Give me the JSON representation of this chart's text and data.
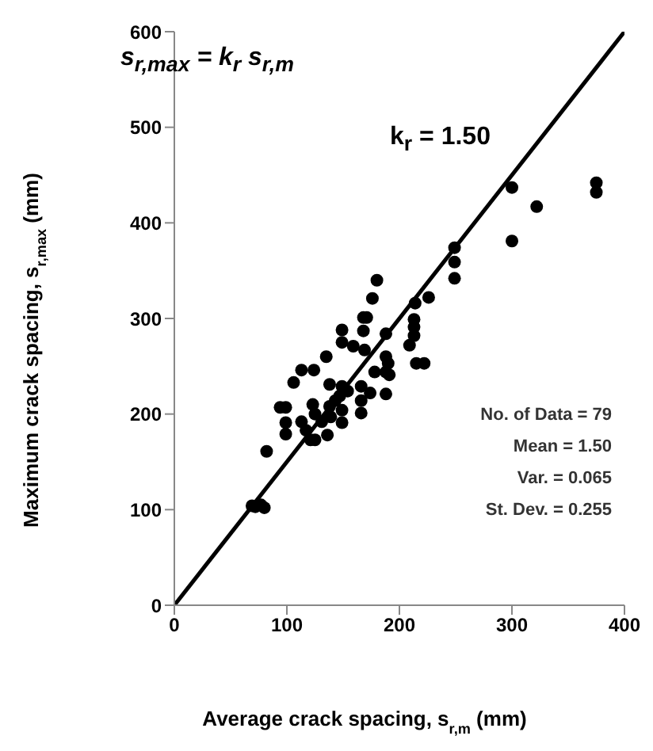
{
  "chart_data": {
    "type": "scatter",
    "xlabel": "Average crack spacing, s$_{r,m}$ (mm)",
    "ylabel": "Maximum crack spacing, s$_{r,max}$ (mm)",
    "annotations": [
      "s$_{r,max}$ = k$_{r}$ s$_{r,m}$",
      "k$_{r}$ = 1.50",
      "No. of Data = 79",
      "Mean = 1.50",
      "Var. = 0.065",
      "St. Dev. = 0.255"
    ],
    "xlim": [
      0,
      400
    ],
    "xticks": [
      0,
      100,
      200,
      300,
      400
    ],
    "ylim": [
      0,
      600
    ],
    "yticks": [
      0,
      100,
      200,
      300,
      400,
      500,
      600
    ],
    "marker": "circle",
    "series": [
      {
        "color": "#000000",
        "x": [
          69,
          72,
          77,
          80,
          82,
          94,
          99,
          99,
          99,
          106,
          113,
          124,
          135,
          113,
          117,
          121,
          125,
          123,
          125,
          131,
          139,
          136,
          138,
          138,
          149,
          147,
          143,
          149,
          149,
          154,
          149,
          149,
          159,
          166,
          166,
          166,
          174,
          169,
          168,
          171,
          168,
          176,
          180,
          178,
          188,
          188,
          190,
          188,
          188,
          191,
          209,
          213,
          213,
          213,
          214,
          226,
          215,
          222,
          249,
          249,
          249,
          300,
          300,
          322,
          375,
          375
        ],
        "values": [
          104,
          103,
          105,
          102,
          161,
          207,
          207,
          191,
          179,
          233,
          246,
          246,
          260,
          192,
          183,
          173,
          173,
          210,
          200,
          192,
          197,
          178,
          208,
          231,
          229,
          219,
          214,
          204,
          191,
          224,
          288,
          275,
          271,
          229,
          214,
          201,
          222,
          267,
          287,
          301,
          301,
          321,
          340,
          244,
          284,
          260,
          253,
          244,
          221,
          241,
          272,
          282,
          291,
          299,
          316,
          322,
          253,
          253,
          374,
          359,
          342,
          437,
          381,
          417,
          442,
          432
        ]
      },
      {
        "type": "line",
        "color": "#000000",
        "marker": "none",
        "x": [
          0,
          400
        ],
        "values": [
          0,
          600
        ]
      }
    ]
  }
}
